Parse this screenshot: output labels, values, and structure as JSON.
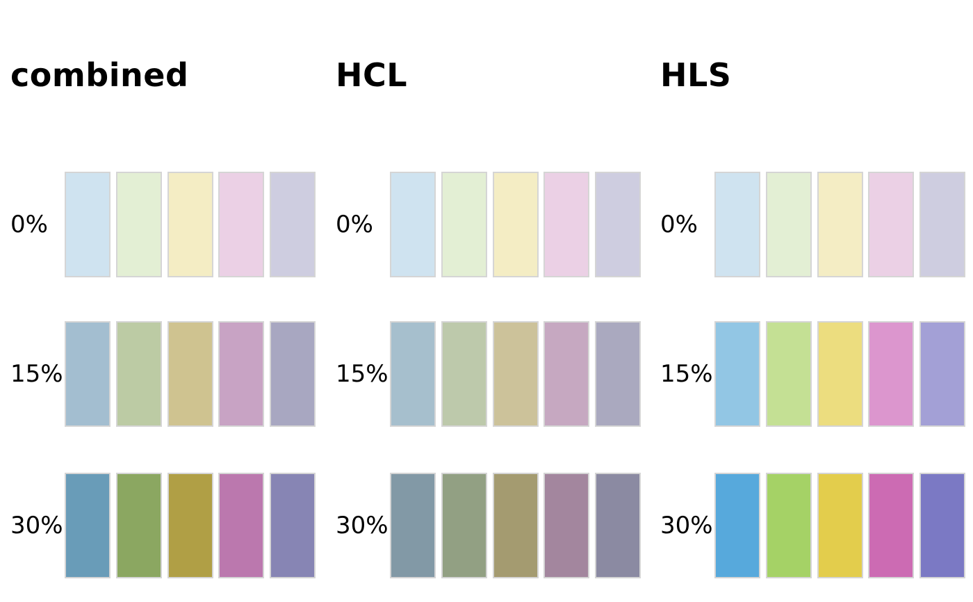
{
  "figure": {
    "background": "#ffffff",
    "text_color": "#000000",
    "swatch_border_color": "#d5d5d5"
  },
  "chart_data": {
    "type": "heatmap",
    "title": "",
    "row_labels": [
      "0%",
      "15%",
      "30%"
    ],
    "legend_position": "none",
    "grid": false,
    "panels": [
      {
        "title": "combined",
        "rows": [
          {
            "label": "0%",
            "colors": [
              "#cfe3f0",
              "#e3efd4",
              "#f4edc4",
              "#ebd0e5",
              "#cecde0"
            ]
          },
          {
            "label": "15%",
            "colors": [
              "#a3bed0",
              "#bccba4",
              "#cfc390",
              "#c8a3c4",
              "#a8a7c1"
            ]
          },
          {
            "label": "30%",
            "colors": [
              "#699cb8",
              "#8ba761",
              "#b09f45",
              "#bb78ae",
              "#8785b4"
            ]
          }
        ]
      },
      {
        "title": "HCL",
        "rows": [
          {
            "label": "0%",
            "colors": [
              "#cfe3f0",
              "#e3efd4",
              "#f4edc4",
              "#ebd0e5",
              "#cecde0"
            ]
          },
          {
            "label": "15%",
            "colors": [
              "#a6bfcd",
              "#bdc9ab",
              "#ccc29a",
              "#c6a8c1",
              "#aaa9bf"
            ]
          },
          {
            "label": "30%",
            "colors": [
              "#8299a6",
              "#92a083",
              "#a49b70",
              "#a3869e",
              "#8b8aa2"
            ]
          }
        ]
      },
      {
        "title": "HLS",
        "rows": [
          {
            "label": "0%",
            "colors": [
              "#cfe3f0",
              "#e3efd4",
              "#f4edc4",
              "#ebd0e5",
              "#cecde0"
            ]
          },
          {
            "label": "15%",
            "colors": [
              "#92c6e4",
              "#c4e094",
              "#ecdd7f",
              "#dc96ce",
              "#a3a0d6"
            ]
          },
          {
            "label": "30%",
            "colors": [
              "#57a9dc",
              "#a5d266",
              "#e3cd4c",
              "#cc6bb3",
              "#7b79c4"
            ]
          }
        ]
      }
    ]
  }
}
